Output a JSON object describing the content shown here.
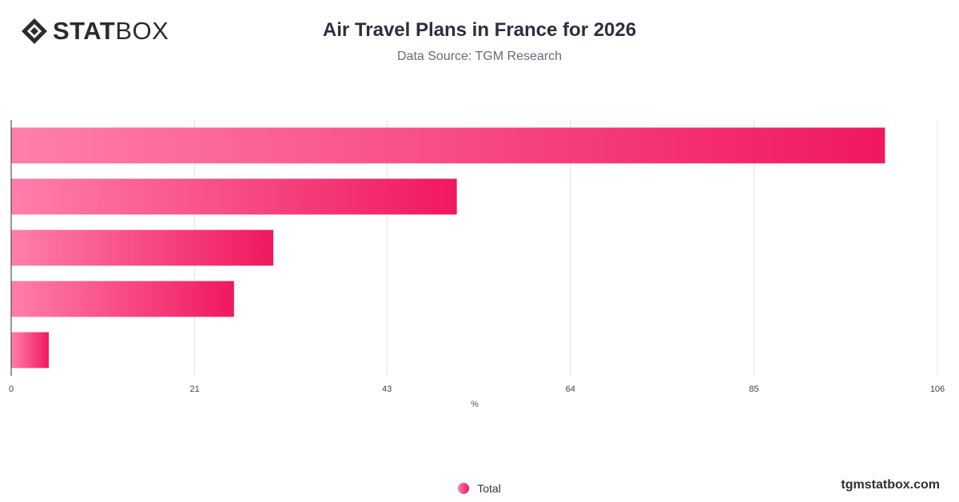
{
  "brand": {
    "logo_bold": "STAT",
    "logo_light": "BOX",
    "website": "tgmstatbox.com"
  },
  "header": {
    "title": "Air Travel Plans in France for 2026",
    "subtitle": "Data Source: TGM Research"
  },
  "colors": {
    "bar_start": "#ff7fab",
    "bar_end": "#f0185f",
    "grid": "#e2e2e2",
    "axis": "#333333"
  },
  "chart_data": {
    "type": "bar",
    "orientation": "horizontal",
    "title": "Air Travel Plans in France for 2026",
    "subtitle": "Data Source: TGM Research",
    "categories": [
      "",
      "",
      "",
      "",
      ""
    ],
    "series": [
      {
        "name": "Total",
        "values": [
          100,
          51,
          30,
          25.5,
          4.3
        ]
      }
    ],
    "xlabel": "%",
    "ylabel": "",
    "xlim": [
      0,
      106
    ],
    "x_ticks": [
      "0",
      "21",
      "43",
      "64",
      "85",
      "106"
    ],
    "grid": true,
    "legend_position": "bottom-center"
  }
}
